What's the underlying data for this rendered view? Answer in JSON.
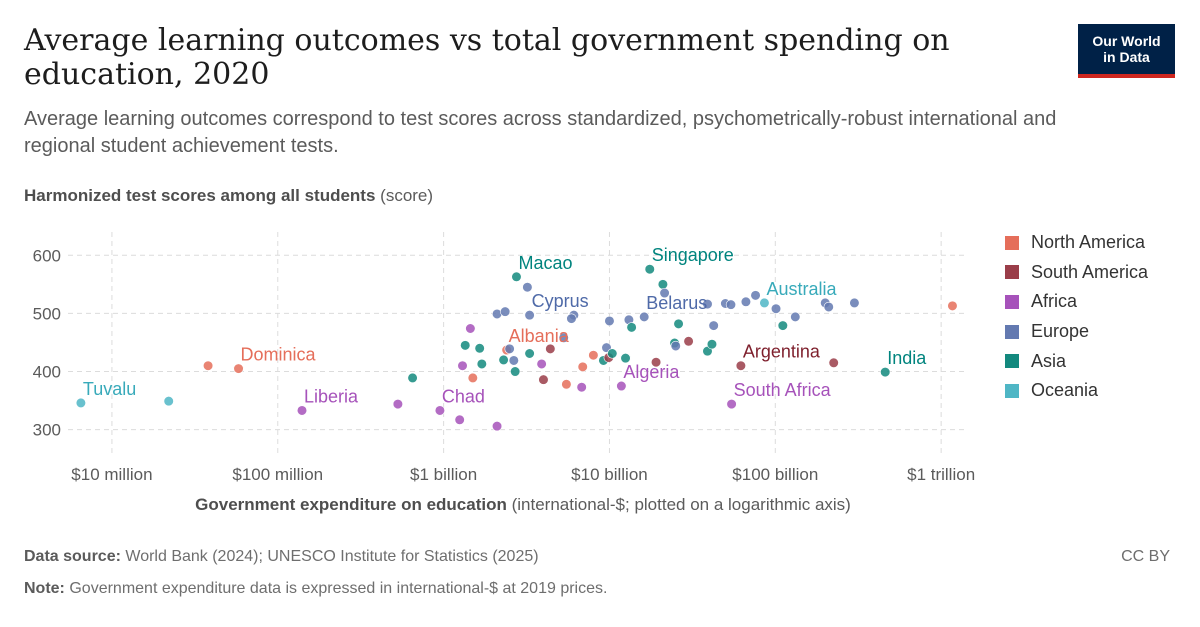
{
  "header": {
    "title": "Average learning outcomes vs total government spending on education, 2020",
    "subtitle": "Average learning outcomes correspond to test scores across standardized, psychometrically-robust international and regional student achievement tests.",
    "logo_line1": "Our World",
    "logo_line2": "in Data"
  },
  "axes": {
    "y_title_bold": "Harmonized test scores among all students",
    "y_title_unit": "(score)",
    "x_title_bold": "Government expenditure on education",
    "x_title_rest": "(international-$; plotted on a logarithmic axis)"
  },
  "footer": {
    "source_label": "Data source:",
    "source_text": "World Bank (2024); UNESCO Institute for Statistics (2025)",
    "note_label": "Note:",
    "note_text": "Government expenditure data is expressed in international-$ at 2019 prices.",
    "license": "CC BY"
  },
  "colors": {
    "North America": "#e56e5a",
    "South America": "#9a3d49",
    "Africa": "#a652ba",
    "Europe": "#6379b0",
    "Asia": "#13897e",
    "Oceania": "#4fb6c5"
  },
  "label_colors": {
    "North America": "#e56e5a",
    "South America": "#7e1f2c",
    "Africa": "#a652ba",
    "Europe": "#4f6aa8",
    "Asia": "#00847e",
    "Oceania": "#38aaba"
  },
  "legend": [
    "North America",
    "South America",
    "Africa",
    "Europe",
    "Asia",
    "Oceania"
  ],
  "chart_data": {
    "type": "scatter",
    "title": "Average learning outcomes vs total government spending on education, 2020",
    "xlabel": "Government expenditure on education (international-$; plotted on a logarithmic axis)",
    "ylabel": "Harmonized test scores among all students (score)",
    "x_scale": "log",
    "xlim": [
      5000000,
      1600000000000
    ],
    "ylim": [
      265,
      640
    ],
    "x_ticks": [
      {
        "value": 10000000,
        "label": "$10 million"
      },
      {
        "value": 100000000,
        "label": "$100 million"
      },
      {
        "value": 1000000000,
        "label": "$1 billion"
      },
      {
        "value": 10000000000,
        "label": "$10 billion"
      },
      {
        "value": 100000000000,
        "label": "$100 billion"
      },
      {
        "value": 1000000000000,
        "label": "$1 trillion"
      }
    ],
    "y_ticks": [
      300,
      400,
      500,
      600
    ],
    "grid": "dashed",
    "legend_position": "right",
    "points": [
      {
        "x": 6500000,
        "y": 346,
        "region": "Oceania",
        "label": "Tuvalu"
      },
      {
        "x": 22000000,
        "y": 349,
        "region": "Oceania"
      },
      {
        "x": 58000000,
        "y": 405,
        "region": "North America",
        "label": "Dominica"
      },
      {
        "x": 38000000,
        "y": 410,
        "region": "North America"
      },
      {
        "x": 140000000,
        "y": 333,
        "region": "Africa",
        "label": "Liberia"
      },
      {
        "x": 530000000,
        "y": 344,
        "region": "Africa"
      },
      {
        "x": 650000000,
        "y": 389,
        "region": "Asia"
      },
      {
        "x": 950000000,
        "y": 333,
        "region": "Africa",
        "label": "Chad"
      },
      {
        "x": 1250000000,
        "y": 317,
        "region": "Africa"
      },
      {
        "x": 1300000000,
        "y": 410,
        "region": "Africa"
      },
      {
        "x": 1350000000,
        "y": 445,
        "region": "Asia"
      },
      {
        "x": 1450000000,
        "y": 474,
        "region": "Africa"
      },
      {
        "x": 1500000000,
        "y": 389,
        "region": "North America"
      },
      {
        "x": 1650000000,
        "y": 440,
        "region": "Asia"
      },
      {
        "x": 1700000000,
        "y": 413,
        "region": "Asia"
      },
      {
        "x": 2100000000,
        "y": 306,
        "region": "Africa"
      },
      {
        "x": 2100000000,
        "y": 499,
        "region": "Europe"
      },
      {
        "x": 2300000000,
        "y": 420,
        "region": "Asia"
      },
      {
        "x": 2350000000,
        "y": 503,
        "region": "Europe"
      },
      {
        "x": 2400000000,
        "y": 437,
        "region": "North America",
        "label": "Albania"
      },
      {
        "x": 2500000000,
        "y": 439,
        "region": "Europe"
      },
      {
        "x": 2650000000,
        "y": 419,
        "region": "Europe"
      },
      {
        "x": 2700000000,
        "y": 400,
        "region": "Asia"
      },
      {
        "x": 2750000000,
        "y": 563,
        "region": "Asia",
        "label": "Macao"
      },
      {
        "x": 3200000000,
        "y": 545,
        "region": "Europe"
      },
      {
        "x": 3300000000,
        "y": 497,
        "region": "Europe",
        "label": "Cyprus"
      },
      {
        "x": 3300000000,
        "y": 431,
        "region": "Asia"
      },
      {
        "x": 3900000000,
        "y": 413,
        "region": "Africa"
      },
      {
        "x": 4000000000,
        "y": 386,
        "region": "South America"
      },
      {
        "x": 4400000000,
        "y": 439,
        "region": "South America"
      },
      {
        "x": 5300000000,
        "y": 458,
        "region": "Europe"
      },
      {
        "x": 5500000000,
        "y": 378,
        "region": "North America"
      },
      {
        "x": 6100000000,
        "y": 497,
        "region": "Europe"
      },
      {
        "x": 5900000000,
        "y": 491,
        "region": "Europe"
      },
      {
        "x": 6800000000,
        "y": 373,
        "region": "Africa"
      },
      {
        "x": 6900000000,
        "y": 408,
        "region": "North America"
      },
      {
        "x": 8000000000,
        "y": 428,
        "region": "North America"
      },
      {
        "x": 9200000000,
        "y": 419,
        "region": "Asia"
      },
      {
        "x": 9600000000,
        "y": 441,
        "region": "Europe"
      },
      {
        "x": 9900000000,
        "y": 424,
        "region": "South America"
      },
      {
        "x": 10400000000,
        "y": 431,
        "region": "Asia"
      },
      {
        "x": 10000000000,
        "y": 487,
        "region": "Europe"
      },
      {
        "x": 11800000000,
        "y": 375,
        "region": "Africa",
        "label": "Algeria"
      },
      {
        "x": 12500000000,
        "y": 423,
        "region": "Asia"
      },
      {
        "x": 13100000000,
        "y": 489,
        "region": "Europe"
      },
      {
        "x": 13600000000,
        "y": 476,
        "region": "Asia"
      },
      {
        "x": 16200000000,
        "y": 494,
        "region": "Europe",
        "label": "Belarus"
      },
      {
        "x": 17500000000,
        "y": 576,
        "region": "Asia",
        "label": "Singapore"
      },
      {
        "x": 19100000000,
        "y": 416,
        "region": "South America"
      },
      {
        "x": 21000000000,
        "y": 550,
        "region": "Asia"
      },
      {
        "x": 21500000000,
        "y": 535,
        "region": "Europe"
      },
      {
        "x": 24700000000,
        "y": 449,
        "region": "Asia"
      },
      {
        "x": 25100000000,
        "y": 444,
        "region": "Europe"
      },
      {
        "x": 26100000000,
        "y": 482,
        "region": "Asia"
      },
      {
        "x": 30000000000,
        "y": 452,
        "region": "South America"
      },
      {
        "x": 39000000000,
        "y": 516,
        "region": "Europe"
      },
      {
        "x": 39000000000,
        "y": 435,
        "region": "Asia"
      },
      {
        "x": 41500000000,
        "y": 447,
        "region": "Asia"
      },
      {
        "x": 42500000000,
        "y": 479,
        "region": "Europe"
      },
      {
        "x": 50000000000,
        "y": 517,
        "region": "Europe"
      },
      {
        "x": 54000000000,
        "y": 515,
        "region": "Europe"
      },
      {
        "x": 54500000000,
        "y": 344,
        "region": "Africa",
        "label": "South Africa"
      },
      {
        "x": 62000000000,
        "y": 410,
        "region": "South America",
        "label": "Argentina"
      },
      {
        "x": 66500000000,
        "y": 520,
        "region": "Europe"
      },
      {
        "x": 76000000000,
        "y": 531,
        "region": "Europe"
      },
      {
        "x": 86000000000,
        "y": 518,
        "region": "Oceania",
        "label": "Australia"
      },
      {
        "x": 101000000000,
        "y": 508,
        "region": "Europe"
      },
      {
        "x": 111000000000,
        "y": 479,
        "region": "Asia"
      },
      {
        "x": 132000000000,
        "y": 494,
        "region": "Europe"
      },
      {
        "x": 200000000000,
        "y": 518,
        "region": "Europe"
      },
      {
        "x": 210000000000,
        "y": 511,
        "region": "Europe"
      },
      {
        "x": 225000000000,
        "y": 415,
        "region": "South America"
      },
      {
        "x": 300000000000,
        "y": 518,
        "region": "Europe"
      },
      {
        "x": 460000000000,
        "y": 399,
        "region": "Asia",
        "label": "India"
      },
      {
        "x": 1170000000000,
        "y": 513,
        "region": "North America"
      }
    ]
  }
}
